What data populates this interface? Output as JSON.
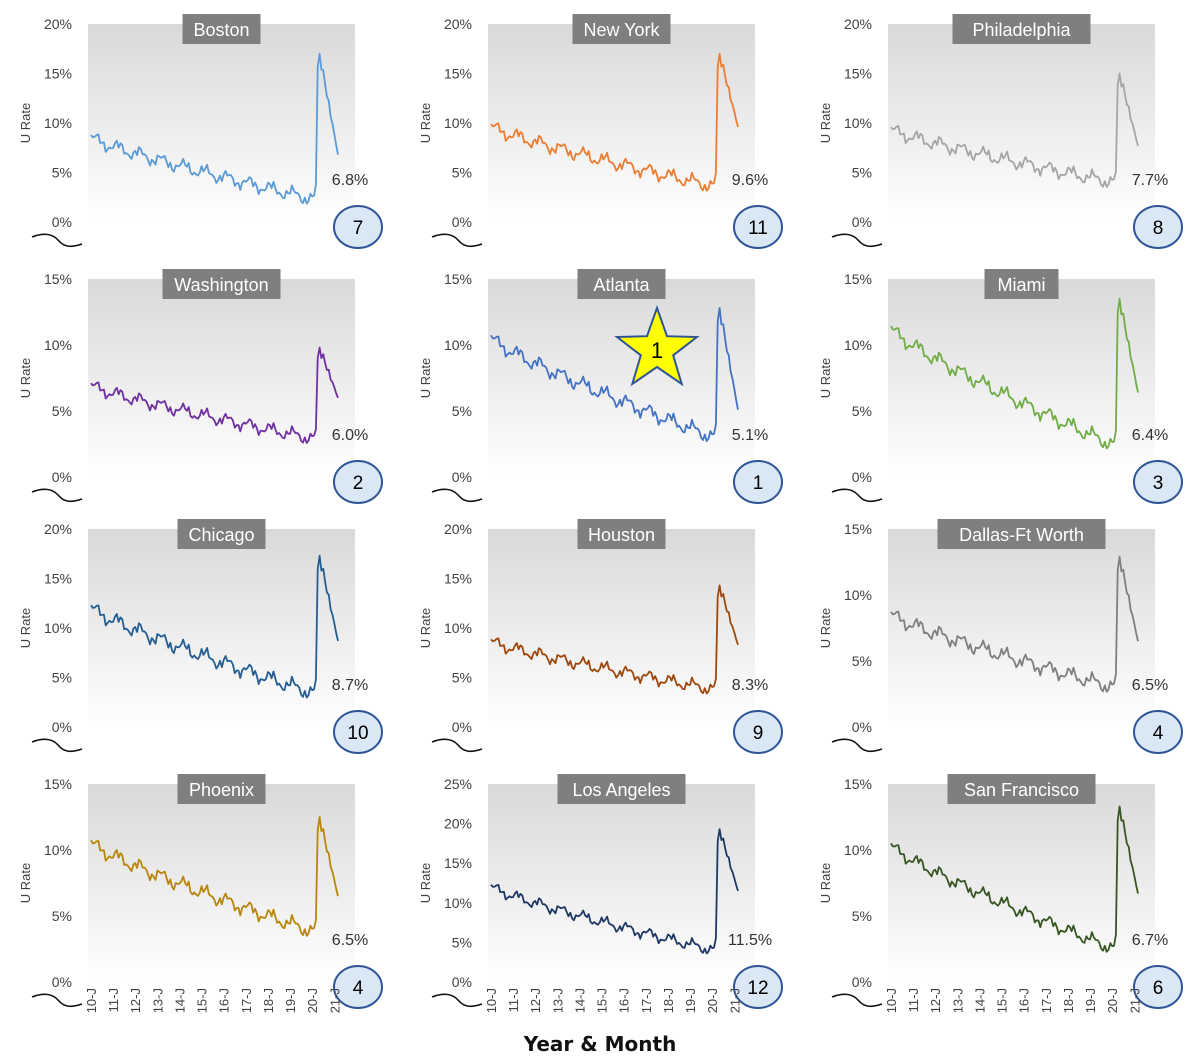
{
  "x_axis_title": "Year & Month",
  "y_axis_title": "U Rate",
  "x_tick_labels": [
    "10-J",
    "11-J",
    "12-J",
    "13-J",
    "14-J",
    "15-J",
    "16-J",
    "17-J",
    "18-J",
    "19-J",
    "20-J",
    "21-J"
  ],
  "highlight": {
    "rank_with_star": 1
  },
  "colors": {
    "plot_bg_top": "#d9d9d9",
    "plot_bg_bottom": "#ffffff",
    "title_bg": "#7f7f7f",
    "badge_fill": "#dae7f5",
    "badge_stroke": "#2f5597",
    "star_fill": "#ffff00",
    "star_stroke": "#2f5597"
  },
  "chart_data": [
    {
      "type": "line",
      "title": "Boston",
      "ylabel": "U Rate",
      "ylim": [
        0,
        20
      ],
      "yticks": [
        "0%",
        "5%",
        "10%",
        "15%",
        "20%"
      ],
      "color": "#5b9bd5",
      "latest_label": "6.8%",
      "rank": "7",
      "start": 8.5,
      "low": 2.3,
      "peak": 17.0,
      "end": 6.8,
      "noise": 0.5
    },
    {
      "type": "line",
      "title": "New York",
      "ylabel": "U Rate",
      "ylim": [
        0,
        20
      ],
      "yticks": [
        "0%",
        "5%",
        "10%",
        "15%",
        "20%"
      ],
      "color": "#ed7d31",
      "latest_label": "9.6%",
      "rank": "11",
      "start": 9.6,
      "low": 3.6,
      "peak": 17.0,
      "end": 9.6,
      "noise": 0.5
    },
    {
      "type": "line",
      "title": "Philadelphia",
      "ylabel": "U Rate",
      "ylim": [
        0,
        20
      ],
      "yticks": [
        "0%",
        "5%",
        "10%",
        "15%",
        "20%"
      ],
      "color": "#a5a5a5",
      "latest_label": "7.7%",
      "rank": "8",
      "start": 9.3,
      "low": 4.0,
      "peak": 15.0,
      "end": 7.7,
      "noise": 0.5
    },
    {
      "type": "line",
      "title": "Washington",
      "ylabel": "U Rate",
      "ylim": [
        0,
        15
      ],
      "yticks": [
        "0%",
        "5%",
        "10%",
        "15%"
      ],
      "color": "#7030a0",
      "latest_label": "6.0%",
      "rank": "2",
      "start": 6.9,
      "low": 2.9,
      "peak": 9.8,
      "end": 6.0,
      "noise": 0.35
    },
    {
      "type": "line",
      "title": "Atlanta",
      "ylabel": "U Rate",
      "ylim": [
        0,
        15
      ],
      "yticks": [
        "0%",
        "5%",
        "10%",
        "15%"
      ],
      "color": "#4472c4",
      "latest_label": "5.1%",
      "rank": "1",
      "start": 10.5,
      "low": 3.0,
      "peak": 12.8,
      "end": 5.1,
      "noise": 0.4
    },
    {
      "type": "line",
      "title": "Miami",
      "ylabel": "U Rate",
      "ylim": [
        0,
        15
      ],
      "yticks": [
        "0%",
        "5%",
        "10%",
        "15%"
      ],
      "color": "#70ad47",
      "latest_label": "6.4%",
      "rank": "3",
      "start": 11.2,
      "low": 2.4,
      "peak": 13.5,
      "end": 6.4,
      "noise": 0.4
    },
    {
      "type": "line",
      "title": "Chicago",
      "ylabel": "U Rate",
      "ylim": [
        0,
        20
      ],
      "yticks": [
        "0%",
        "5%",
        "10%",
        "15%",
        "20%"
      ],
      "color": "#255e91",
      "latest_label": "8.7%",
      "rank": "10",
      "start": 12.0,
      "low": 3.4,
      "peak": 17.3,
      "end": 8.7,
      "noise": 0.55
    },
    {
      "type": "line",
      "title": "Houston",
      "ylabel": "U Rate",
      "ylim": [
        0,
        20
      ],
      "yticks": [
        "0%",
        "5%",
        "10%",
        "15%",
        "20%"
      ],
      "color": "#9e480e",
      "latest_label": "8.3%",
      "rank": "9",
      "start": 8.6,
      "low": 3.8,
      "peak": 14.3,
      "end": 8.3,
      "noise": 0.45
    },
    {
      "type": "line",
      "title": "Dallas-Ft Worth",
      "ylabel": "U Rate",
      "ylim": [
        0,
        15
      ],
      "yticks": [
        "0%",
        "5%",
        "10%",
        "15%"
      ],
      "color": "#7f7f7f",
      "latest_label": "6.5%",
      "rank": "4",
      "start": 8.5,
      "low": 3.0,
      "peak": 12.9,
      "end": 6.5,
      "noise": 0.4
    },
    {
      "type": "line",
      "title": "Phoenix",
      "ylabel": "U Rate",
      "ylim": [
        0,
        15
      ],
      "yticks": [
        "0%",
        "5%",
        "10%",
        "15%"
      ],
      "color": "#b8860b",
      "latest_label": "6.5%",
      "rank": "4",
      "start": 10.5,
      "low": 3.8,
      "peak": 12.5,
      "end": 6.5,
      "noise": 0.4
    },
    {
      "type": "line",
      "title": "Los Angeles",
      "ylabel": "U Rate",
      "ylim": [
        0,
        25
      ],
      "yticks": [
        "0%",
        "5%",
        "10%",
        "15%",
        "20%",
        "25%"
      ],
      "color": "#1f3864",
      "latest_label": "11.5%",
      "rank": "12",
      "start": 12.0,
      "low": 4.0,
      "peak": 19.3,
      "end": 11.5,
      "noise": 0.5
    },
    {
      "type": "line",
      "title": "San Francisco",
      "ylabel": "U Rate",
      "ylim": [
        0,
        15
      ],
      "yticks": [
        "0%",
        "5%",
        "10%",
        "15%"
      ],
      "color": "#375623",
      "latest_label": "6.7%",
      "rank": "6",
      "start": 10.3,
      "low": 2.5,
      "peak": 13.3,
      "end": 6.7,
      "noise": 0.35
    }
  ]
}
